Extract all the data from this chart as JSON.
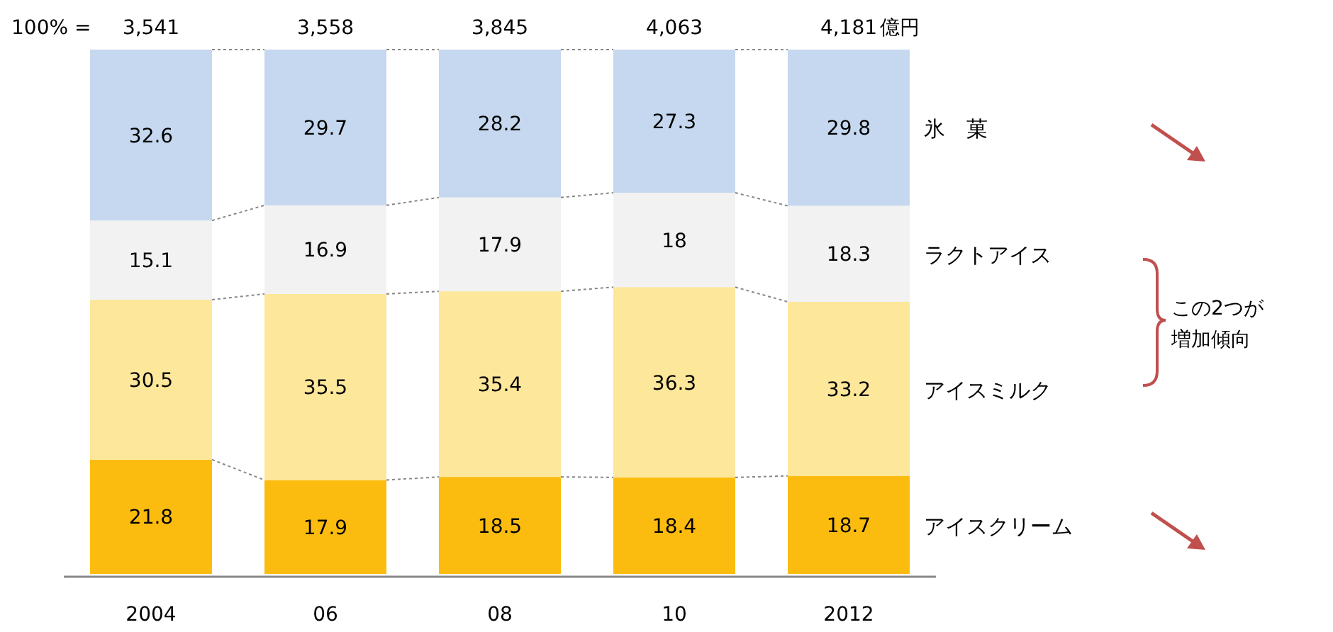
{
  "chart_data": {
    "type": "bar",
    "stacked": true,
    "data_labels": true,
    "categories": [
      "2004",
      "06",
      "08",
      "10",
      "2012"
    ],
    "series": [
      {
        "name": "アイスクリーム",
        "color": "#fcbc0f",
        "values": [
          21.8,
          17.9,
          18.5,
          18.4,
          18.7
        ]
      },
      {
        "name": "アイスミルク",
        "color": "#fde79a",
        "values": [
          30.5,
          35.5,
          35.4,
          36.3,
          33.2
        ]
      },
      {
        "name": "ラクトアイス",
        "color": "#f2f2f2",
        "values": [
          15.1,
          16.9,
          17.9,
          18,
          18.3
        ]
      },
      {
        "name": "氷　菓",
        "color": "#c6d8ef",
        "values": [
          32.6,
          29.7,
          28.2,
          27.3,
          29.8
        ]
      }
    ],
    "annotations": [
      "100% =",
      "億円",
      "この2つが増加傾向",
      "3,541",
      "3,558",
      "3,845",
      "4,063",
      "4,181"
    ]
  }
}
